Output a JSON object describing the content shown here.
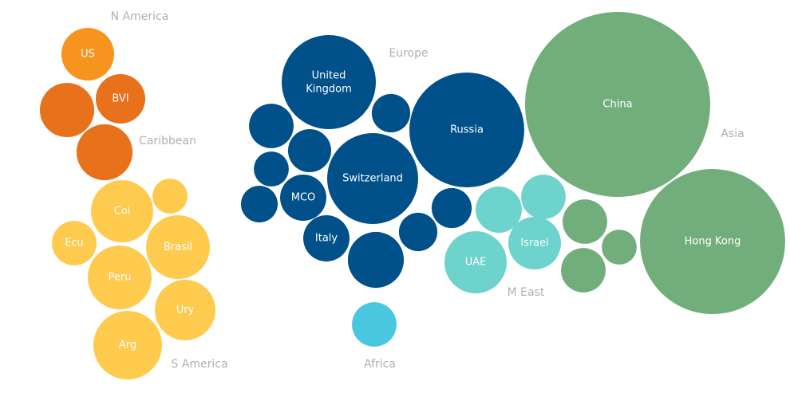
{
  "chart_data": {
    "type": "bubble",
    "groups": [
      {
        "name": "N America",
        "color": "#f7941d",
        "bubbles": [
          {
            "label": "US",
            "value": 109
          }
        ]
      },
      {
        "name": "Caribbean",
        "color": "#e8711c",
        "bubbles": [
          {
            "label": null,
            "value": 116
          },
          {
            "label": "BVI",
            "value": 96
          },
          {
            "label": null,
            "value": 123
          }
        ]
      },
      {
        "name": "S America",
        "color": "#fecb4f",
        "bubbles": [
          {
            "label": "Col",
            "value": 152
          },
          {
            "label": null,
            "value": 48
          },
          {
            "label": "Ecu",
            "value": 78
          },
          {
            "label": "Brasil",
            "value": 160
          },
          {
            "label": "Peru",
            "value": 160
          },
          {
            "label": "Ury",
            "value": 144
          },
          {
            "label": "Arg",
            "value": 185
          }
        ]
      },
      {
        "name": "Europe",
        "color": "#00508a",
        "bubbles": [
          {
            "label": "United Kingdom",
            "value": 348
          },
          {
            "label": null,
            "value": 78
          },
          {
            "label": null,
            "value": 58
          },
          {
            "label": "Russia",
            "value": 518
          },
          {
            "label": null,
            "value": 73
          },
          {
            "label": null,
            "value": 48
          },
          {
            "label": "Switzerland",
            "value": 325
          },
          {
            "label": "MCO",
            "value": 84
          },
          {
            "label": null,
            "value": 53
          },
          {
            "label": "Italy",
            "value": 84
          },
          {
            "label": null,
            "value": 58
          },
          {
            "label": null,
            "value": 63
          },
          {
            "label": null,
            "value": 123
          }
        ]
      },
      {
        "name": "Africa",
        "color": "#4ac7e0",
        "bubbles": [
          {
            "label": null,
            "value": 78
          }
        ]
      },
      {
        "name": "M East",
        "color": "#6dd3cc",
        "bubbles": [
          {
            "label": null,
            "value": 84
          },
          {
            "label": null,
            "value": 78
          },
          {
            "label": "UAE",
            "value": 152
          },
          {
            "label": "Israel",
            "value": 109
          }
        ]
      },
      {
        "name": "Asia",
        "color": "#72ae7c",
        "bubbles": [
          {
            "label": "China",
            "value": 1346
          },
          {
            "label": "Hong Kong",
            "value": 828
          },
          {
            "label": null,
            "value": 78
          },
          {
            "label": null,
            "value": 48
          },
          {
            "label": null,
            "value": 78
          }
        ]
      }
    ]
  }
}
